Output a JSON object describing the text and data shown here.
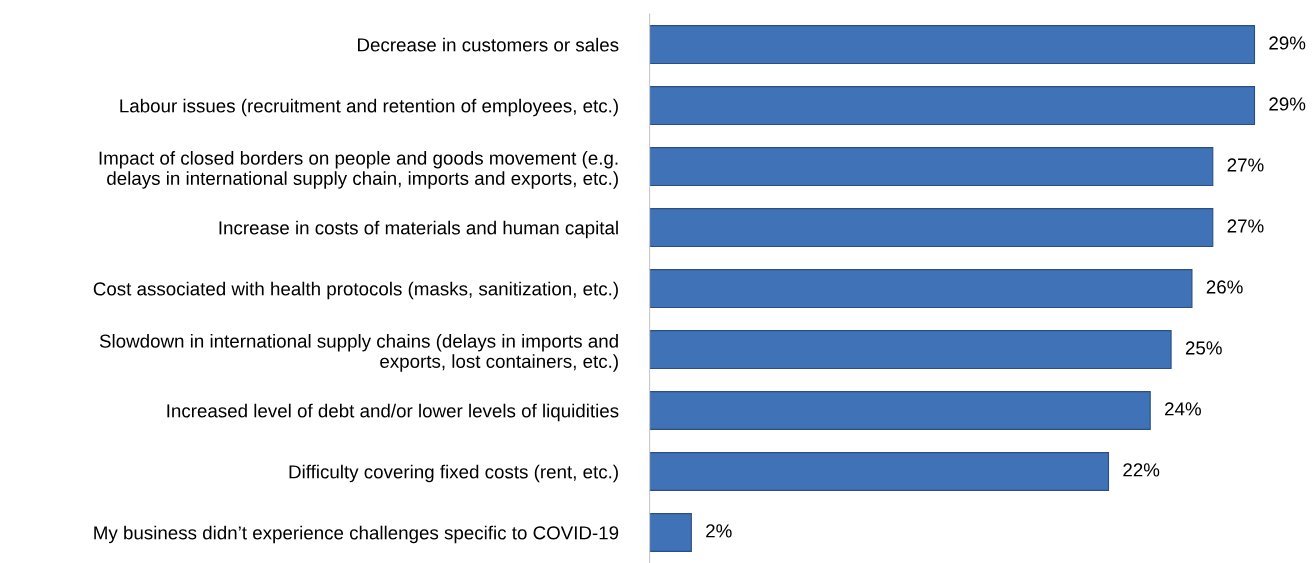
{
  "chart_data": {
    "type": "bar",
    "orientation": "horizontal",
    "categories": [
      "Decrease in customers or sales",
      "Labour issues (recruitment and retention of employees, etc.)",
      "Impact of closed borders on people and goods movement (e.g.\ndelays in international supply chain, imports and exports, etc.)",
      "Increase in costs of materials and human capital",
      "Cost associated with health protocols (masks, sanitization, etc.)",
      "Slowdown in international supply chains (delays in imports and\nexports, lost containers, etc.)",
      "Increased level of debt and/or lower levels of liquidities",
      "Difficulty covering fixed costs (rent, etc.)",
      "My business didn’t experience challenges specific to COVID-19"
    ],
    "values": [
      29,
      29,
      27,
      27,
      26,
      25,
      24,
      22,
      2
    ],
    "value_labels": [
      "29%",
      "29%",
      "27%",
      "27%",
      "26%",
      "25%",
      "24%",
      "22%",
      "2%"
    ],
    "color": "#3f72b6",
    "grid": false,
    "legend": false
  }
}
